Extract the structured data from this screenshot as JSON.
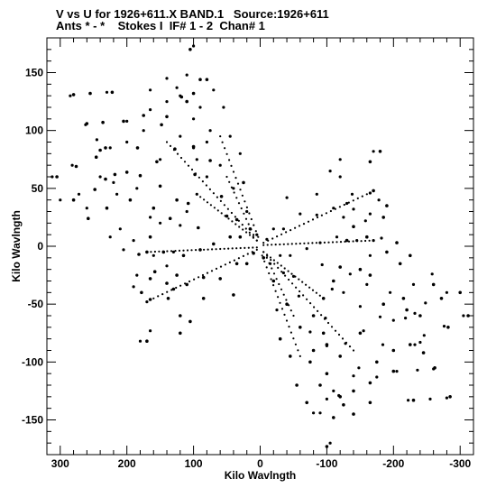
{
  "header": {
    "title": "V vs U for 1926+611.X BAND.1   Source:1926+611",
    "subtitle": "Ants * - *    Stokes I  IF# 1 - 2  Chan# 1"
  },
  "chart_data": {
    "type": "scatter",
    "title": "V vs U for 1926+611.X BAND.1   Source:1926+611",
    "subtitle": "Ants * - *    Stokes I  IF# 1 - 2  Chan# 1",
    "xlabel": "Kilo Wavlngth",
    "ylabel": "Kilo Wavlngth",
    "xlim": [
      320,
      -320
    ],
    "ylim": [
      -180,
      180
    ],
    "x_ticks": [
      300,
      200,
      100,
      0,
      -100,
      -200,
      -300
    ],
    "x_tick_labels": [
      "300",
      "200",
      "100",
      "0",
      "-100",
      "-200",
      "-300"
    ],
    "y_ticks": [
      150,
      100,
      50,
      0,
      -50,
      -100,
      -150
    ],
    "y_tick_labels": [
      "150",
      "100",
      "50",
      "0",
      "-50",
      "-100",
      "-150"
    ],
    "grid": false,
    "marker_color": "#000000",
    "points": [
      [
        305,
        60
      ],
      [
        280,
        40
      ],
      [
        276,
        69
      ],
      [
        280,
        131
      ],
      [
        260,
        106
      ],
      [
        255,
        132
      ],
      [
        248,
        49
      ],
      [
        258,
        24
      ],
      [
        246,
        77
      ],
      [
        240,
        83
      ],
      [
        236,
        107
      ],
      [
        230,
        33
      ],
      [
        232,
        58
      ],
      [
        232,
        85
      ],
      [
        222,
        133
      ],
      [
        218,
        62
      ],
      [
        205,
        108
      ],
      [
        200,
        64
      ],
      [
        195,
        40
      ],
      [
        184,
        85
      ],
      [
        182,
        -7
      ],
      [
        180,
        61
      ],
      [
        178,
        -40
      ],
      [
        175,
        113
      ],
      [
        170,
        -82
      ],
      [
        165,
        8
      ],
      [
        170,
        -5
      ],
      [
        165,
        -28
      ],
      [
        165,
        -46
      ],
      [
        160,
        33
      ],
      [
        158,
        -22
      ],
      [
        155,
        73
      ],
      [
        150,
        52
      ],
      [
        148,
        105
      ],
      [
        145,
        -5
      ],
      [
        140,
        112
      ],
      [
        140,
        -32
      ],
      [
        138,
        -45
      ],
      [
        135,
        24
      ],
      [
        130,
        -37
      ],
      [
        128,
        84
      ],
      [
        125,
        40
      ],
      [
        125,
        -25
      ],
      [
        120,
        -75
      ],
      [
        118,
        129
      ],
      [
        115,
        -8
      ],
      [
        110,
        -33
      ],
      [
        108,
        37
      ],
      [
        100,
        86
      ],
      [
        98,
        62
      ],
      [
        93,
        16
      ],
      [
        90,
        -3
      ],
      [
        85,
        -27
      ],
      [
        80,
        144
      ],
      [
        75,
        74
      ],
      [
        70,
        2
      ],
      [
        60,
        -28
      ],
      [
        58,
        43
      ],
      [
        50,
        26
      ],
      [
        45,
        8
      ],
      [
        40,
        -42
      ],
      [
        35,
        23
      ],
      [
        30,
        8
      ],
      [
        25,
        55
      ],
      [
        20,
        -15
      ],
      [
        15,
        15
      ],
      [
        10,
        -6
      ],
      [
        105,
        170
      ],
      [
        90,
        144
      ],
      [
        100,
        132
      ],
      [
        110,
        125
      ],
      [
        120,
        -60
      ],
      [
        105,
        -65
      ],
      [
        85,
        -45
      ],
      [
        35,
        -15
      ],
      [
        -5,
        -10
      ],
      [
        -20,
        -30
      ],
      [
        -40,
        -50
      ],
      [
        -60,
        -70
      ],
      [
        -80,
        -90
      ],
      [
        -100,
        -110
      ],
      [
        -120,
        -130
      ],
      [
        -140,
        -145
      ],
      [
        -165,
        -135
      ],
      [
        -185,
        -50
      ],
      [
        -200,
        -90
      ],
      [
        -200,
        -108
      ],
      [
        -220,
        -55
      ],
      [
        -225,
        -85
      ],
      [
        -230,
        -133
      ],
      [
        -245,
        -92
      ],
      [
        -260,
        -33
      ],
      [
        -262,
        -105
      ],
      [
        -272,
        -45
      ],
      [
        -285,
        -130
      ],
      [
        -282,
        -70
      ],
      [
        -300,
        -40
      ],
      [
        -312,
        -60
      ],
      [
        -100,
        -173
      ],
      [
        -110,
        -148
      ],
      [
        -125,
        -137
      ],
      [
        -140,
        -125
      ],
      [
        -165,
        -118
      ],
      [
        -175,
        -100
      ],
      [
        -120,
        -95
      ],
      [
        -95,
        -75
      ],
      [
        -150,
        -75
      ],
      [
        -165,
        -25
      ],
      [
        -185,
        25
      ],
      [
        -190,
        -5
      ],
      [
        -205,
        3
      ],
      [
        -215,
        -45
      ],
      [
        -225,
        -8
      ],
      [
        -240,
        -60
      ],
      [
        -180,
        82
      ],
      [
        -165,
        73
      ],
      [
        -140,
        17
      ],
      [
        -120,
        -18
      ],
      [
        -95,
        -45
      ],
      [
        -90,
        -120
      ],
      [
        -100,
        -85
      ],
      [
        -75,
        -100
      ],
      [
        -55,
        -120
      ],
      [
        -45,
        -95
      ],
      [
        -30,
        -80
      ],
      [
        -110,
        -30
      ],
      [
        -130,
        5
      ],
      [
        -150,
        -20
      ],
      [
        -160,
        8
      ],
      [
        -170,
        48
      ],
      [
        -190,
        35
      ],
      [
        -210,
        -15
      ],
      [
        -70,
        -135
      ],
      [
        -80,
        -60
      ]
    ],
    "rays": [
      {
        "from": [
          140,
          90
        ],
        "to": [
          5,
          5
        ],
        "count": 26
      },
      {
        "from": [
          95,
          45
        ],
        "to": [
          5,
          5
        ],
        "count": 18
      },
      {
        "from": [
          170,
          -5
        ],
        "to": [
          5,
          -1
        ],
        "count": 28
      },
      {
        "from": [
          160,
          -45
        ],
        "to": [
          5,
          -3
        ],
        "count": 24
      },
      {
        "from": [
          60,
          95
        ],
        "to": [
          3,
          8
        ],
        "count": 18
      },
      {
        "from": [
          -140,
          -90
        ],
        "to": [
          -5,
          -5
        ],
        "count": 26
      },
      {
        "from": [
          -95,
          -45
        ],
        "to": [
          -5,
          -5
        ],
        "count": 18
      },
      {
        "from": [
          -170,
          5
        ],
        "to": [
          -5,
          1
        ],
        "count": 28
      },
      {
        "from": [
          -160,
          45
        ],
        "to": [
          -5,
          3
        ],
        "count": 24
      },
      {
        "from": [
          -60,
          -95
        ],
        "to": [
          -3,
          -8
        ],
        "count": 18
      },
      {
        "from": [
          50,
          60
        ],
        "to": [
          10,
          10
        ],
        "count": 12
      },
      {
        "from": [
          -50,
          -60
        ],
        "to": [
          -10,
          -10
        ],
        "count": 12
      }
    ]
  }
}
